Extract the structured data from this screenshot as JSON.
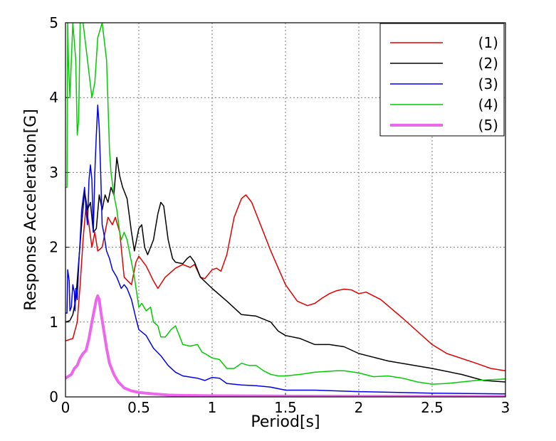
{
  "chart_data": {
    "type": "line",
    "title": "",
    "xlabel": "Period[s]",
    "ylabel": "Response Acceleration[G]",
    "xlim": [
      0,
      3
    ],
    "ylim": [
      0,
      5
    ],
    "grid": true,
    "legend_position": "top-right",
    "x_ticks": [
      {
        "value": 0,
        "label": "0"
      },
      {
        "value": 0.5,
        "label": "0.5"
      },
      {
        "value": 1,
        "label": "1"
      },
      {
        "value": 1.5,
        "label": "1.5"
      },
      {
        "value": 2,
        "label": "2"
      },
      {
        "value": 2.5,
        "label": "2.5"
      },
      {
        "value": 3,
        "label": "3"
      }
    ],
    "y_ticks": [
      {
        "value": 0,
        "label": "0"
      },
      {
        "value": 1,
        "label": "1"
      },
      {
        "value": 2,
        "label": "2"
      },
      {
        "value": 3,
        "label": "3"
      },
      {
        "value": 4,
        "label": "4"
      },
      {
        "value": 5,
        "label": "5"
      }
    ],
    "series": [
      {
        "name": "(1)",
        "color": "#e00000",
        "width": 1.5,
        "points": [
          [
            0,
            0.75
          ],
          [
            0.05,
            0.78
          ],
          [
            0.08,
            1.0
          ],
          [
            0.1,
            1.5
          ],
          [
            0.12,
            2.1
          ],
          [
            0.14,
            2.55
          ],
          [
            0.16,
            2.3
          ],
          [
            0.18,
            2.0
          ],
          [
            0.2,
            2.2
          ],
          [
            0.22,
            1.95
          ],
          [
            0.25,
            2.0
          ],
          [
            0.27,
            2.2
          ],
          [
            0.29,
            2.4
          ],
          [
            0.32,
            2.3
          ],
          [
            0.34,
            2.4
          ],
          [
            0.37,
            2.2
          ],
          [
            0.4,
            1.6
          ],
          [
            0.45,
            1.5
          ],
          [
            0.48,
            1.8
          ],
          [
            0.5,
            1.88
          ],
          [
            0.55,
            1.75
          ],
          [
            0.6,
            1.55
          ],
          [
            0.63,
            1.45
          ],
          [
            0.68,
            1.6
          ],
          [
            0.75,
            1.72
          ],
          [
            0.8,
            1.77
          ],
          [
            0.85,
            1.73
          ],
          [
            0.88,
            1.77
          ],
          [
            0.92,
            1.6
          ],
          [
            0.95,
            1.58
          ],
          [
            1.0,
            1.7
          ],
          [
            1.03,
            1.72
          ],
          [
            1.06,
            1.68
          ],
          [
            1.1,
            1.9
          ],
          [
            1.15,
            2.4
          ],
          [
            1.2,
            2.65
          ],
          [
            1.23,
            2.7
          ],
          [
            1.27,
            2.6
          ],
          [
            1.32,
            2.35
          ],
          [
            1.4,
            1.95
          ],
          [
            1.5,
            1.5
          ],
          [
            1.58,
            1.28
          ],
          [
            1.65,
            1.22
          ],
          [
            1.7,
            1.25
          ],
          [
            1.75,
            1.32
          ],
          [
            1.8,
            1.38
          ],
          [
            1.85,
            1.42
          ],
          [
            1.9,
            1.44
          ],
          [
            1.95,
            1.43
          ],
          [
            2.0,
            1.38
          ],
          [
            2.05,
            1.4
          ],
          [
            2.15,
            1.3
          ],
          [
            2.3,
            1.05
          ],
          [
            2.5,
            0.7
          ],
          [
            2.6,
            0.58
          ],
          [
            2.8,
            0.45
          ],
          [
            2.9,
            0.38
          ],
          [
            3.0,
            0.35
          ]
        ]
      },
      {
        "name": "(2)",
        "color": "#000000",
        "width": 1.5,
        "points": [
          [
            0,
            1.0
          ],
          [
            0.03,
            1.02
          ],
          [
            0.05,
            1.1
          ],
          [
            0.07,
            1.3
          ],
          [
            0.09,
            1.8
          ],
          [
            0.11,
            2.3
          ],
          [
            0.13,
            2.75
          ],
          [
            0.15,
            2.5
          ],
          [
            0.17,
            2.6
          ],
          [
            0.19,
            2.2
          ],
          [
            0.21,
            2.25
          ],
          [
            0.23,
            2.7
          ],
          [
            0.25,
            2.5
          ],
          [
            0.27,
            2.7
          ],
          [
            0.29,
            2.6
          ],
          [
            0.31,
            2.8
          ],
          [
            0.33,
            2.7
          ],
          [
            0.35,
            3.2
          ],
          [
            0.37,
            2.95
          ],
          [
            0.39,
            2.8
          ],
          [
            0.42,
            2.65
          ],
          [
            0.45,
            2.2
          ],
          [
            0.47,
            1.95
          ],
          [
            0.5,
            2.25
          ],
          [
            0.52,
            2.3
          ],
          [
            0.54,
            2.0
          ],
          [
            0.56,
            1.9
          ],
          [
            0.6,
            2.1
          ],
          [
            0.63,
            2.45
          ],
          [
            0.65,
            2.6
          ],
          [
            0.67,
            2.55
          ],
          [
            0.7,
            2.1
          ],
          [
            0.73,
            1.85
          ],
          [
            0.75,
            1.8
          ],
          [
            0.8,
            1.78
          ],
          [
            0.83,
            1.85
          ],
          [
            0.85,
            1.88
          ],
          [
            0.88,
            1.8
          ],
          [
            0.92,
            1.6
          ],
          [
            1.0,
            1.45
          ],
          [
            1.1,
            1.28
          ],
          [
            1.2,
            1.1
          ],
          [
            1.3,
            1.08
          ],
          [
            1.4,
            1.0
          ],
          [
            1.45,
            0.88
          ],
          [
            1.5,
            0.82
          ],
          [
            1.6,
            0.78
          ],
          [
            1.7,
            0.7
          ],
          [
            1.8,
            0.7
          ],
          [
            1.9,
            0.67
          ],
          [
            2.0,
            0.58
          ],
          [
            2.2,
            0.48
          ],
          [
            2.5,
            0.38
          ],
          [
            2.7,
            0.3
          ],
          [
            2.85,
            0.22
          ],
          [
            3.0,
            0.2
          ]
        ]
      },
      {
        "name": "(3)",
        "color": "#0000ee",
        "width": 1.5,
        "points": [
          [
            0,
            1.12
          ],
          [
            0.01,
            1.12
          ],
          [
            0.015,
            1.7
          ],
          [
            0.025,
            1.55
          ],
          [
            0.03,
            1.15
          ],
          [
            0.04,
            1.2
          ],
          [
            0.05,
            1.5
          ],
          [
            0.06,
            1.4
          ],
          [
            0.065,
            1.15
          ],
          [
            0.07,
            1.45
          ],
          [
            0.08,
            1.3
          ],
          [
            0.09,
            1.75
          ],
          [
            0.1,
            2.1
          ],
          [
            0.11,
            2.5
          ],
          [
            0.12,
            2.65
          ],
          [
            0.13,
            2.8
          ],
          [
            0.14,
            2.5
          ],
          [
            0.15,
            2.3
          ],
          [
            0.16,
            2.9
          ],
          [
            0.17,
            3.1
          ],
          [
            0.18,
            2.9
          ],
          [
            0.19,
            2.2
          ],
          [
            0.2,
            3.0
          ],
          [
            0.21,
            3.5
          ],
          [
            0.22,
            3.9
          ],
          [
            0.23,
            3.6
          ],
          [
            0.24,
            3.0
          ],
          [
            0.25,
            2.3
          ],
          [
            0.26,
            2.2
          ],
          [
            0.28,
            1.95
          ],
          [
            0.3,
            1.85
          ],
          [
            0.32,
            1.7
          ],
          [
            0.35,
            1.6
          ],
          [
            0.38,
            1.45
          ],
          [
            0.4,
            1.5
          ],
          [
            0.42,
            1.45
          ],
          [
            0.45,
            1.3
          ],
          [
            0.48,
            1.05
          ],
          [
            0.5,
            0.9
          ],
          [
            0.55,
            0.82
          ],
          [
            0.6,
            0.65
          ],
          [
            0.65,
            0.55
          ],
          [
            0.7,
            0.42
          ],
          [
            0.75,
            0.33
          ],
          [
            0.8,
            0.28
          ],
          [
            0.9,
            0.25
          ],
          [
            0.95,
            0.22
          ],
          [
            1.0,
            0.26
          ],
          [
            1.05,
            0.25
          ],
          [
            1.1,
            0.18
          ],
          [
            1.2,
            0.16
          ],
          [
            1.3,
            0.15
          ],
          [
            1.4,
            0.13
          ],
          [
            1.5,
            0.09
          ],
          [
            1.7,
            0.09
          ],
          [
            2.0,
            0.07
          ],
          [
            2.5,
            0.05
          ],
          [
            3.0,
            0.04
          ]
        ]
      },
      {
        "name": "(4)",
        "color": "#00cc00",
        "width": 1.5,
        "points": [
          [
            0,
            2.8
          ],
          [
            0.01,
            2.8
          ],
          [
            0.015,
            5.0
          ],
          [
            0.02,
            4.5
          ],
          [
            0.03,
            4.0
          ],
          [
            0.05,
            5.0
          ],
          [
            0.07,
            4.5
          ],
          [
            0.08,
            3.5
          ],
          [
            0.09,
            3.7
          ],
          [
            0.1,
            5.0
          ],
          [
            0.12,
            5.0
          ],
          [
            0.15,
            4.5
          ],
          [
            0.18,
            4.0
          ],
          [
            0.2,
            4.2
          ],
          [
            0.22,
            4.8
          ],
          [
            0.25,
            5.0
          ],
          [
            0.28,
            4.5
          ],
          [
            0.3,
            3.3
          ],
          [
            0.31,
            3.0
          ],
          [
            0.33,
            2.7
          ],
          [
            0.35,
            2.5
          ],
          [
            0.37,
            2.2
          ],
          [
            0.38,
            2.1
          ],
          [
            0.4,
            2.2
          ],
          [
            0.42,
            2.1
          ],
          [
            0.45,
            1.8
          ],
          [
            0.47,
            1.6
          ],
          [
            0.5,
            1.2
          ],
          [
            0.52,
            1.25
          ],
          [
            0.55,
            1.15
          ],
          [
            0.58,
            1.2
          ],
          [
            0.6,
            1.0
          ],
          [
            0.63,
            0.95
          ],
          [
            0.65,
            0.8
          ],
          [
            0.68,
            0.8
          ],
          [
            0.7,
            0.85
          ],
          [
            0.72,
            0.9
          ],
          [
            0.75,
            0.95
          ],
          [
            0.78,
            0.8
          ],
          [
            0.8,
            0.7
          ],
          [
            0.85,
            0.68
          ],
          [
            0.9,
            0.7
          ],
          [
            0.93,
            0.6
          ],
          [
            0.95,
            0.58
          ],
          [
            1.0,
            0.52
          ],
          [
            1.05,
            0.5
          ],
          [
            1.1,
            0.38
          ],
          [
            1.15,
            0.38
          ],
          [
            1.2,
            0.45
          ],
          [
            1.25,
            0.42
          ],
          [
            1.3,
            0.42
          ],
          [
            1.35,
            0.35
          ],
          [
            1.4,
            0.3
          ],
          [
            1.45,
            0.28
          ],
          [
            1.5,
            0.28
          ],
          [
            1.6,
            0.3
          ],
          [
            1.7,
            0.33
          ],
          [
            1.85,
            0.35
          ],
          [
            1.9,
            0.35
          ],
          [
            2.0,
            0.32
          ],
          [
            2.1,
            0.27
          ],
          [
            2.2,
            0.28
          ],
          [
            2.3,
            0.25
          ],
          [
            2.4,
            0.2
          ],
          [
            2.5,
            0.17
          ],
          [
            2.6,
            0.18
          ],
          [
            2.8,
            0.22
          ],
          [
            3.0,
            0.24
          ]
        ]
      },
      {
        "name": "(5)",
        "color": "#ee66ee",
        "width": 4,
        "points": [
          [
            0,
            0.25
          ],
          [
            0.04,
            0.3
          ],
          [
            0.06,
            0.38
          ],
          [
            0.08,
            0.42
          ],
          [
            0.1,
            0.52
          ],
          [
            0.12,
            0.58
          ],
          [
            0.14,
            0.62
          ],
          [
            0.16,
            0.78
          ],
          [
            0.18,
            1.0
          ],
          [
            0.2,
            1.2
          ],
          [
            0.21,
            1.3
          ],
          [
            0.22,
            1.35
          ],
          [
            0.23,
            1.3
          ],
          [
            0.24,
            1.15
          ],
          [
            0.26,
            0.9
          ],
          [
            0.28,
            0.65
          ],
          [
            0.3,
            0.45
          ],
          [
            0.33,
            0.3
          ],
          [
            0.36,
            0.2
          ],
          [
            0.4,
            0.12
          ],
          [
            0.45,
            0.08
          ],
          [
            0.5,
            0.06
          ],
          [
            0.6,
            0.04
          ],
          [
            0.7,
            0.025
          ],
          [
            0.8,
            0.02
          ],
          [
            1.0,
            0.015
          ],
          [
            1.5,
            0.01
          ],
          [
            2.0,
            0.008
          ],
          [
            3.0,
            0.005
          ]
        ]
      }
    ]
  }
}
